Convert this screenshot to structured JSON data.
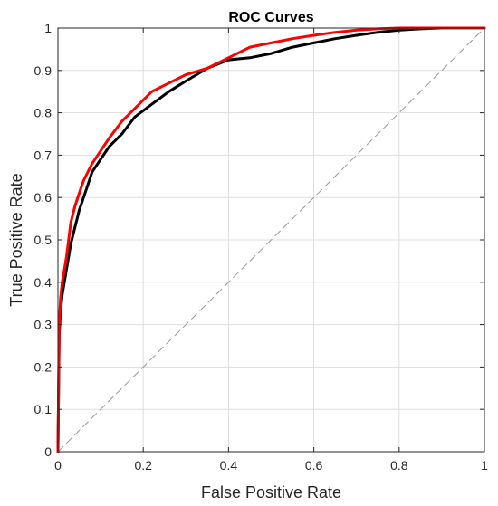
{
  "chart_data": {
    "type": "line",
    "title": "ROC Curves",
    "xlabel": "False Positive Rate",
    "ylabel": "True Positive Rate",
    "xlim": [
      0,
      1
    ],
    "ylim": [
      0,
      1
    ],
    "grid": true,
    "x_ticks": [
      "0",
      "0.2",
      "0.4",
      "0.6",
      "0.8",
      "1"
    ],
    "x_tick_values": [
      0,
      0.2,
      0.4,
      0.6,
      0.8,
      1
    ],
    "y_ticks": [
      "0",
      "0.1",
      "0.2",
      "0.3",
      "0.4",
      "0.5",
      "0.6",
      "0.7",
      "0.8",
      "0.9",
      "1"
    ],
    "y_tick_values": [
      0,
      0.1,
      0.2,
      0.3,
      0.4,
      0.5,
      0.6,
      0.7,
      0.8,
      0.9,
      1
    ],
    "series": [
      {
        "color": "#ff0000",
        "x": [
          0,
          0.003,
          0.006,
          0.01,
          0.015,
          0.02,
          0.025,
          0.03,
          0.04,
          0.05,
          0.06,
          0.07,
          0.08,
          0.1,
          0.12,
          0.15,
          0.18,
          0.22,
          0.26,
          0.3,
          0.35,
          0.4,
          0.45,
          0.5,
          0.55,
          0.6,
          0.65,
          0.7,
          0.75,
          0.8,
          0.85,
          0.9,
          1
        ],
        "y": [
          0,
          0.3,
          0.36,
          0.4,
          0.43,
          0.46,
          0.5,
          0.54,
          0.58,
          0.61,
          0.64,
          0.66,
          0.68,
          0.71,
          0.74,
          0.78,
          0.81,
          0.85,
          0.87,
          0.89,
          0.905,
          0.93,
          0.955,
          0.965,
          0.975,
          0.983,
          0.99,
          0.995,
          0.998,
          1,
          1,
          1,
          1
        ]
      },
      {
        "color": "#000000",
        "x": [
          0,
          0.003,
          0.006,
          0.01,
          0.015,
          0.02,
          0.025,
          0.03,
          0.04,
          0.05,
          0.06,
          0.07,
          0.08,
          0.1,
          0.12,
          0.15,
          0.18,
          0.22,
          0.26,
          0.3,
          0.35,
          0.4,
          0.45,
          0.5,
          0.55,
          0.6,
          0.65,
          0.7,
          0.75,
          0.8,
          0.85,
          0.9,
          1
        ],
        "y": [
          0,
          0.28,
          0.33,
          0.37,
          0.4,
          0.43,
          0.46,
          0.49,
          0.53,
          0.57,
          0.6,
          0.63,
          0.66,
          0.69,
          0.72,
          0.75,
          0.79,
          0.82,
          0.85,
          0.875,
          0.905,
          0.925,
          0.93,
          0.94,
          0.955,
          0.965,
          0.975,
          0.983,
          0.99,
          0.995,
          0.998,
          1,
          1
        ]
      },
      {
        "color": "#999999",
        "style": "dashed",
        "x": [
          0,
          1
        ],
        "y": [
          0,
          1
        ]
      }
    ]
  }
}
